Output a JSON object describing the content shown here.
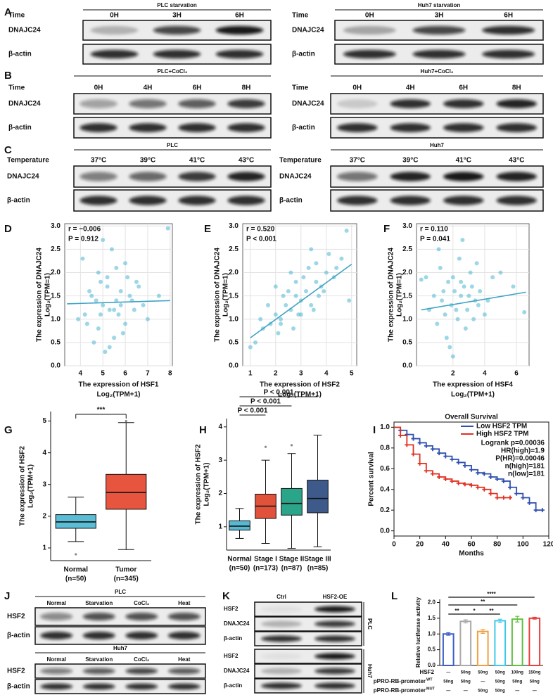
{
  "panel_labels": [
    "A",
    "B",
    "C",
    "D",
    "E",
    "F",
    "G",
    "H",
    "I",
    "J",
    "K",
    "L"
  ],
  "blots": {
    "A": [
      {
        "title": "PLC starvation",
        "row_label": "Time",
        "lanes": [
          "0H",
          "3H",
          "6H"
        ],
        "rows": [
          "DNAJC24",
          "β-actin"
        ]
      },
      {
        "title": "Huh7 starvation",
        "row_label": "Time",
        "lanes": [
          "0H",
          "3H",
          "6H"
        ],
        "rows": [
          "DNAJC24",
          "β-actin"
        ]
      }
    ],
    "B": [
      {
        "title": "PLC+CoCl₂",
        "row_label": "Time",
        "lanes": [
          "0H",
          "4H",
          "6H",
          "8H"
        ],
        "rows": [
          "DNAJC24",
          "β-actin"
        ]
      },
      {
        "title": "Huh7+CoCl₂",
        "row_label": "Time",
        "lanes": [
          "0H",
          "4H",
          "6H",
          "8H"
        ],
        "rows": [
          "DNAJC24",
          "β-actin"
        ]
      }
    ],
    "C": [
      {
        "title": "PLC",
        "row_label": "Temperature",
        "lanes": [
          "37°C",
          "39°C",
          "41°C",
          "43°C"
        ],
        "rows": [
          "DNAJC24",
          "β-actin"
        ]
      },
      {
        "title": "Huh7",
        "row_label": "Temperature",
        "lanes": [
          "37°C",
          "39°C",
          "41°C",
          "43°C"
        ],
        "rows": [
          "DNAJC24",
          "β-actin"
        ]
      }
    ],
    "J": [
      {
        "title": "PLC",
        "lanes": [
          "Normal",
          "Starvation",
          "CoCl₂",
          "Heat"
        ],
        "rows": [
          "HSF2",
          "β-actin"
        ]
      },
      {
        "title": "Huh7",
        "lanes": [
          "Normal",
          "Starvation",
          "CoCl₂",
          "Heat"
        ],
        "rows": [
          "HSF2",
          "β-actin"
        ]
      }
    ],
    "K": {
      "lanes": [
        "Ctrl",
        "HSF2-OE"
      ],
      "groups": [
        {
          "name": "PLC",
          "rows": [
            "HSF2",
            "DNAJC24",
            "β-actin"
          ]
        },
        {
          "name": "Huh7",
          "rows": [
            "HSF2",
            "DNAJC24",
            "β-actin"
          ]
        }
      ]
    }
  },
  "chart_data": [
    {
      "type": "scatter",
      "x_label": [
        "The expression of HSF1",
        "Log₂(TPM+1)"
      ],
      "y_label": [
        "The expression of DNAJC24",
        "Log₂(TPM=1)"
      ],
      "annotations": [
        "r = −0.006",
        "P = 0.912"
      ],
      "x": [
        4.2,
        4.5,
        4.8,
        5.0,
        5.2,
        5.5,
        5.8,
        6.0,
        6.3,
        6.6,
        7.0,
        4.1,
        4.6,
        4.9,
        5.3,
        5.6,
        5.9,
        6.2,
        6.8,
        5.1,
        4.4,
        5.4,
        5.7,
        6.1,
        4.7,
        5.0,
        5.5,
        6.4,
        3.9,
        7.5,
        4.3,
        5.2,
        5.8,
        6.0,
        4.9,
        5.3,
        6.5,
        7.9,
        5.6,
        4.8
      ],
      "y": [
        1.1,
        1.5,
        0.8,
        1.3,
        1.9,
        1.2,
        1.6,
        0.9,
        1.4,
        1.7,
        1.0,
        2.3,
        0.5,
        1.8,
        1.2,
        2.1,
        0.7,
        1.5,
        1.3,
        0.3,
        1.6,
        2.5,
        1.1,
        1.9,
        1.4,
        2.7,
        0.6,
        1.2,
        1.0,
        1.5,
        0.9,
        1.7,
        1.3,
        2.2,
        1.1,
        0.4,
        1.8,
        2.95,
        1.4,
        2.0
      ],
      "color": "#5bbcd6",
      "fit": {
        "x": [
          3.4,
          8
        ],
        "y": [
          1.33,
          1.4
        ],
        "color": "#3fa3c4"
      },
      "xlim": [
        3.3,
        8.1
      ],
      "xticks": [
        4,
        5,
        6,
        7,
        8
      ],
      "ylim": [
        0,
        3.05
      ],
      "yticks": [
        {
          "value": 0,
          "label": "0.0"
        },
        0.5,
        {
          "value": 1,
          "label": "1.0"
        },
        1.5,
        {
          "value": 2,
          "label": "2.0"
        },
        2.5,
        {
          "value": 3,
          "label": "3.0"
        }
      ],
      "grid": true
    },
    {
      "type": "scatter",
      "x_label": [
        "The expression of HSF2",
        "Log₂(TPM+1)"
      ],
      "y_label": [
        "The expression of DNAJC24",
        "Log₂(TPM=1)"
      ],
      "annotations": [
        "r = 0.520",
        "P < 0.001"
      ],
      "x": [
        1.2,
        1.5,
        1.8,
        2.0,
        2.2,
        2.4,
        2.6,
        2.8,
        3.0,
        3.2,
        3.4,
        3.6,
        3.8,
        4.0,
        4.3,
        4.6,
        4.9,
        1.0,
        2.1,
        2.5,
        2.9,
        3.3,
        3.7,
        4.1,
        1.7,
        2.3,
        2.7,
        3.1,
        3.5,
        3.9,
        4.4,
        2.0,
        2.6,
        3.0,
        3.4,
        1.4,
        2.8,
        3.6,
        4.8,
        2.2
      ],
      "y": [
        0.5,
        0.8,
        0.9,
        1.1,
        1.0,
        1.3,
        1.2,
        1.5,
        1.4,
        1.6,
        1.3,
        1.8,
        1.7,
        2.0,
        1.9,
        2.3,
        1.4,
        0.4,
        0.7,
        1.6,
        1.1,
        2.1,
        1.5,
        2.4,
        1.3,
        1.5,
        0.8,
        1.9,
        1.2,
        1.6,
        2.1,
        1.7,
        2.0,
        1.1,
        2.5,
        1.0,
        1.8,
        2.2,
        2.9,
        0.9
      ],
      "color": "#5bbcd6",
      "fit": {
        "x": [
          1,
          5
        ],
        "y": [
          0.6,
          2.18
        ],
        "color": "#3fa3c4"
      },
      "xlim": [
        0.7,
        5.2
      ],
      "xticks": [
        1,
        2,
        3,
        4,
        5
      ],
      "ylim": [
        0,
        3.05
      ],
      "yticks": [
        {
          "value": 0,
          "label": "0.0"
        },
        0.5,
        {
          "value": 1,
          "label": "1.0"
        },
        1.5,
        {
          "value": 2,
          "label": "2.0"
        },
        2.5,
        {
          "value": 3,
          "label": "3.0"
        }
      ],
      "grid": true
    },
    {
      "type": "scatter",
      "x_label": [
        "The expression of HSF4",
        "Log₂(TPM+1)"
      ],
      "y_label": [
        "The expression of DNAJC24",
        "Log₂(TPM=1)"
      ],
      "annotations": [
        "r = 0.110",
        "P = 0.041"
      ],
      "x": [
        0.5,
        0.8,
        1.0,
        1.3,
        1.5,
        1.7,
        1.9,
        2.1,
        2.3,
        2.5,
        2.7,
        2.9,
        3.1,
        3.4,
        3.7,
        4.0,
        4.5,
        5.0,
        1.2,
        1.6,
        2.0,
        2.4,
        2.8,
        3.2,
        3.6,
        1.1,
        1.8,
        2.2,
        2.6,
        3.0,
        3.3,
        4.2,
        0.3,
        1.4,
        2.0,
        2.5,
        3.5,
        5.8,
        6.5,
        0.0
      ],
      "y": [
        1.2,
        1.5,
        0.9,
        1.4,
        1.1,
        1.8,
        1.3,
        1.6,
        1.0,
        1.5,
        1.7,
        1.2,
        2.0,
        1.4,
        1.6,
        1.1,
        1.9,
        2.0,
        2.1,
        0.6,
        1.9,
        2.3,
        0.8,
        1.7,
        1.3,
        2.5,
        0.4,
        1.2,
        2.7,
        1.5,
        1.0,
        1.4,
        1.9,
        1.6,
        0.2,
        1.8,
        2.2,
        1.7,
        1.15,
        1.85
      ],
      "color": "#5bbcd6",
      "fit": {
        "x": [
          0,
          6.6
        ],
        "y": [
          1.2,
          1.58
        ],
        "color": "#3fa3c4"
      },
      "xlim": [
        -0.3,
        6.8
      ],
      "xticks": [
        2,
        4,
        6
      ],
      "ylim": [
        0,
        3.05
      ],
      "yticks": [
        {
          "value": 0,
          "label": "0.0"
        },
        0.5,
        {
          "value": 1,
          "label": "1.0"
        },
        1.5,
        {
          "value": 2,
          "label": "2.0"
        },
        2.5,
        {
          "value": 3,
          "label": "3.0"
        }
      ],
      "grid": true
    },
    {
      "type": "box",
      "y_label": [
        "The expression of HSF2",
        "Log₂(TPM+1)"
      ],
      "categories": [
        "Normal",
        "Tumor"
      ],
      "category_notes": [
        "(n=50)",
        "(n=345)"
      ],
      "colors": [
        "#5bbcd6",
        "#e8553e"
      ],
      "boxes": [
        {
          "min": 1.2,
          "q1": 1.62,
          "median": 1.82,
          "q3": 2.05,
          "max": 2.6,
          "outliers": [
            0.8
          ]
        },
        {
          "min": 0.95,
          "q1": 2.22,
          "median": 2.75,
          "q3": 3.32,
          "max": 4.95,
          "outliers": [
            5.0
          ]
        }
      ],
      "ylim": [
        0.6,
        5.3
      ],
      "yticks": [
        1,
        2,
        3,
        4,
        5
      ],
      "annotations": [
        "***"
      ]
    },
    {
      "type": "box",
      "y_label": [
        "The expression of HSF2",
        "Log₂(TPM+1)"
      ],
      "categories": [
        "Normal",
        "Stage I",
        "Stage II",
        "Stage III"
      ],
      "category_notes": [
        "(n=50)",
        "(n=173)",
        "(n=87)",
        "(n=85)"
      ],
      "colors": [
        "#56b8d1",
        "#e0523a",
        "#2ba58a",
        "#3d5a8a"
      ],
      "boxes": [
        {
          "min": 0.65,
          "q1": 0.9,
          "median": 1.02,
          "q3": 1.18,
          "max": 1.55,
          "outliers": []
        },
        {
          "min": 0.5,
          "q1": 1.25,
          "median": 1.62,
          "q3": 1.98,
          "max": 3.0,
          "outliers": [
            3.4
          ]
        },
        {
          "min": 0.35,
          "q1": 1.35,
          "median": 1.7,
          "q3": 2.15,
          "max": 3.2,
          "outliers": [
            3.45
          ]
        },
        {
          "min": 0.4,
          "q1": 1.42,
          "median": 1.85,
          "q3": 2.4,
          "max": 3.75,
          "outliers": []
        }
      ],
      "ylim": [
        0.3,
        4.25
      ],
      "yticks": [
        1,
        2,
        3,
        4
      ],
      "annotations": [
        "P < 0.001",
        "P < 0.001",
        "P < 0.001"
      ]
    },
    {
      "type": "survival",
      "title": "Overall Survival",
      "x_label": "Months",
      "y_label": "Percent survival",
      "xlim": [
        0,
        120
      ],
      "xticks": [
        0,
        20,
        40,
        60,
        80,
        100,
        120
      ],
      "ylim": [
        -0.05,
        1.05
      ],
      "yticks": [
        {
          "value": 0,
          "label": "0.0"
        },
        0.2,
        0.4,
        0.6,
        0.8,
        {
          "value": 1,
          "label": "1.0"
        }
      ],
      "legend": "upper right",
      "series": [
        {
          "name": "Low HSF2 TPM",
          "color": "#3050b0",
          "x": [
            0,
            5,
            10,
            15,
            20,
            25,
            30,
            35,
            40,
            45,
            50,
            55,
            60,
            65,
            70,
            75,
            80,
            85,
            90,
            95,
            100,
            105,
            110,
            115
          ],
          "values": [
            1,
            0.97,
            0.93,
            0.89,
            0.85,
            0.82,
            0.79,
            0.75,
            0.72,
            0.69,
            0.66,
            0.63,
            0.59,
            0.56,
            0.55,
            0.52,
            0.5,
            0.48,
            0.42,
            0.36,
            0.32,
            0.27,
            0.2,
            0.2
          ]
        },
        {
          "name": "High HSF2 TPM",
          "color": "#e03020",
          "x": [
            0,
            5,
            10,
            15,
            20,
            25,
            30,
            35,
            40,
            45,
            50,
            55,
            60,
            65,
            70,
            75,
            80,
            85,
            90
          ],
          "values": [
            1,
            0.92,
            0.83,
            0.74,
            0.65,
            0.58,
            0.55,
            0.52,
            0.5,
            0.48,
            0.46,
            0.45,
            0.44,
            0.42,
            0.4,
            0.36,
            0.32,
            0.32,
            0.32
          ]
        }
      ],
      "annotations": [
        "Logrank p=0.00036",
        "HR(high)=1.9",
        "P(HR)=0.00046",
        "n(high)=181",
        "n(low)=181"
      ]
    },
    {
      "type": "bar",
      "y_label": "Relative luciferase activity",
      "values": [
        1.0,
        1.4,
        1.08,
        1.42,
        1.47,
        1.5
      ],
      "errors": [
        0.04,
        0.05,
        0.06,
        0.05,
        0.09,
        0.03
      ],
      "colors": [
        "#3a5fc8",
        "#aaaaaa",
        "#f0a040",
        "#40c8e8",
        "#60c040",
        "#e84040"
      ],
      "ylim": [
        0,
        2.1
      ],
      "yticks": [
        {
          "value": 0,
          "label": "0.0"
        },
        0.5,
        {
          "value": 1,
          "label": "1.0"
        },
        1.5,
        {
          "value": 2,
          "label": "2.0"
        }
      ],
      "annotations": [
        "****",
        "**",
        "**",
        "*",
        "**"
      ],
      "conditions": [
        {
          "label": "HSF2",
          "values": [
            "—",
            "50ng",
            "50ng",
            "50ng",
            "100ng",
            "150ng"
          ]
        },
        {
          "label": "pPRO-RB-promoter",
          "sup": "WT",
          "values": [
            "50ng",
            "50ng",
            "—",
            "50ng",
            "50ng",
            "50ng"
          ]
        },
        {
          "label": "pPRO-RB-promoter",
          "sup": "MUT",
          "values": [
            "—",
            "—",
            "50ng",
            "50ng",
            "—",
            "—"
          ]
        }
      ]
    }
  ]
}
